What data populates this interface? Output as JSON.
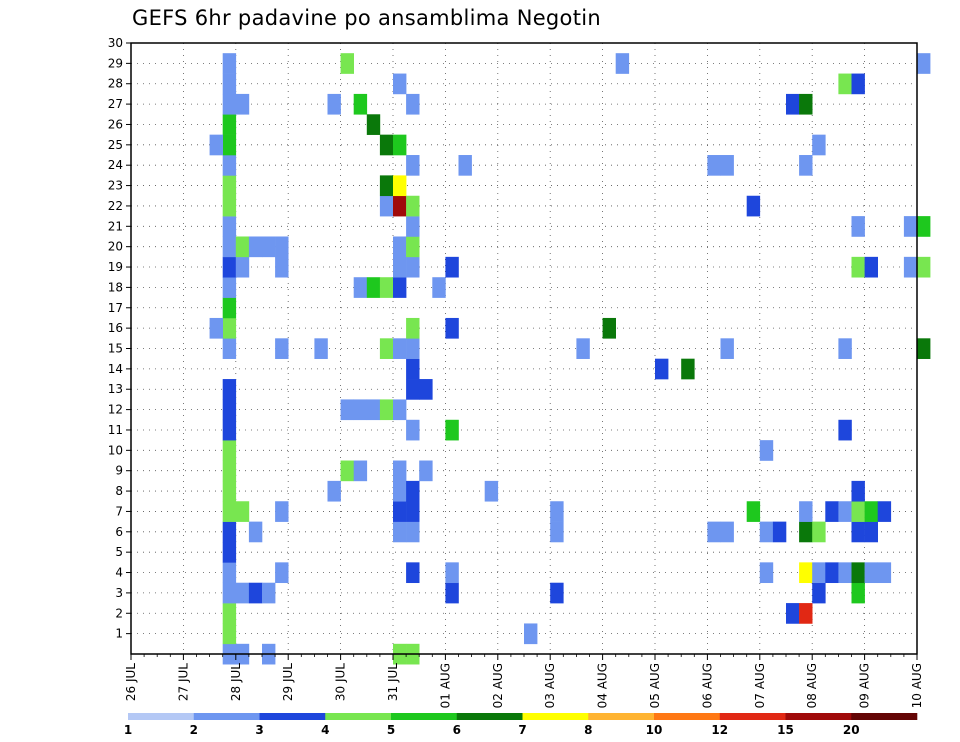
{
  "title": "GEFS 6hr padavine po ansamblima Negotin",
  "chart_data": {
    "type": "heatmap",
    "title": "GEFS 6hr padavine po ansamblima Negotin",
    "xlabel": "",
    "ylabel": "",
    "x_ticks": [
      "26 JUL",
      "27 JUL",
      "28 JUL",
      "29 JUL",
      "30 JUL",
      "31 JUL",
      "01 AUG",
      "02 AUG",
      "03 AUG",
      "04 AUG",
      "05 AUG",
      "06 AUG",
      "07 AUG",
      "08 AUG",
      "09 AUG",
      "10 AUG"
    ],
    "y_ticks": [
      1,
      2,
      3,
      4,
      5,
      6,
      7,
      8,
      9,
      10,
      11,
      12,
      13,
      14,
      15,
      16,
      17,
      18,
      19,
      20,
      21,
      22,
      23,
      24,
      25,
      26,
      27,
      28,
      29,
      30
    ],
    "x_range": [
      0,
      60
    ],
    "y_range": [
      0,
      30
    ],
    "x_step_note": "x index = 6-hour step from 26 JUL 00Z",
    "grid": true,
    "colorbar": {
      "levels": [
        "1",
        "2",
        "3",
        "4",
        "5",
        "6",
        "7",
        "8",
        "10",
        "12",
        "15",
        "20"
      ],
      "colors": [
        "#b4c8f5",
        "#6e96f0",
        "#1e46dc",
        "#78e650",
        "#1ec81e",
        "#0a780a",
        "#ffff00",
        "#ffb432",
        "#ff7814",
        "#e12814",
        "#a00a0a",
        "#640505"
      ]
    },
    "cells": [
      [
        7,
        0,
        1
      ],
      [
        7,
        1,
        3
      ],
      [
        7,
        2,
        3
      ],
      [
        7,
        3,
        1
      ],
      [
        7,
        4,
        1
      ],
      [
        7,
        5,
        2
      ],
      [
        7,
        6,
        2
      ],
      [
        7,
        7,
        3
      ],
      [
        7,
        8,
        3
      ],
      [
        7,
        9,
        3
      ],
      [
        7,
        10,
        3
      ],
      [
        7,
        11,
        2
      ],
      [
        7,
        12,
        2
      ],
      [
        7,
        13,
        2
      ],
      [
        7,
        15,
        1
      ],
      [
        7,
        16,
        3
      ],
      [
        7,
        17,
        4
      ],
      [
        7,
        18,
        1
      ],
      [
        7,
        19,
        2
      ],
      [
        7,
        20,
        1
      ],
      [
        7,
        21,
        1
      ],
      [
        7,
        22,
        3
      ],
      [
        7,
        23,
        3
      ],
      [
        7,
        24,
        1
      ],
      [
        7,
        25,
        4
      ],
      [
        7,
        26,
        4
      ],
      [
        7,
        27,
        1
      ],
      [
        7,
        28,
        1
      ],
      [
        7,
        29,
        1
      ],
      [
        8,
        0,
        1
      ],
      [
        8,
        3,
        1
      ],
      [
        8,
        7,
        3
      ],
      [
        8,
        19,
        1
      ],
      [
        8,
        20,
        3
      ],
      [
        8,
        27,
        1
      ],
      [
        6,
        16,
        1
      ],
      [
        6,
        25,
        1
      ],
      [
        9,
        3,
        2
      ],
      [
        9,
        6,
        1
      ],
      [
        9,
        20,
        1
      ],
      [
        10,
        0,
        1
      ],
      [
        10,
        3,
        1
      ],
      [
        10,
        20,
        1
      ],
      [
        11,
        4,
        1
      ],
      [
        11,
        7,
        1
      ],
      [
        11,
        15,
        1
      ],
      [
        11,
        19,
        1
      ],
      [
        11,
        20,
        1
      ],
      [
        14,
        15,
        1
      ],
      [
        15,
        8,
        1
      ],
      [
        15,
        27,
        1
      ],
      [
        16,
        9,
        3
      ],
      [
        16,
        12,
        1
      ],
      [
        16,
        29,
        3
      ],
      [
        17,
        9,
        1
      ],
      [
        17,
        12,
        1
      ],
      [
        17,
        18,
        1
      ],
      [
        17,
        27,
        4
      ],
      [
        18,
        12,
        1
      ],
      [
        18,
        18,
        4
      ],
      [
        18,
        26,
        5
      ],
      [
        19,
        12,
        3
      ],
      [
        19,
        15,
        3
      ],
      [
        19,
        18,
        3
      ],
      [
        19,
        22,
        1
      ],
      [
        19,
        23,
        5
      ],
      [
        19,
        25,
        5
      ],
      [
        20,
        0,
        3
      ],
      [
        20,
        6,
        1
      ],
      [
        20,
        7,
        2
      ],
      [
        20,
        8,
        1
      ],
      [
        20,
        9,
        1
      ],
      [
        20,
        12,
        1
      ],
      [
        20,
        15,
        1
      ],
      [
        20,
        18,
        2
      ],
      [
        20,
        19,
        1
      ],
      [
        20,
        20,
        1
      ],
      [
        20,
        22,
        10
      ],
      [
        20,
        23,
        6
      ],
      [
        20,
        25,
        4
      ],
      [
        20,
        28,
        1
      ],
      [
        21,
        0,
        3
      ],
      [
        21,
        4,
        2
      ],
      [
        21,
        6,
        1
      ],
      [
        21,
        7,
        2
      ],
      [
        21,
        8,
        2
      ],
      [
        21,
        11,
        1
      ],
      [
        21,
        13,
        2
      ],
      [
        21,
        14,
        2
      ],
      [
        21,
        15,
        1
      ],
      [
        21,
        16,
        3
      ],
      [
        21,
        19,
        1
      ],
      [
        21,
        20,
        3
      ],
      [
        21,
        21,
        1
      ],
      [
        21,
        22,
        3
      ],
      [
        21,
        24,
        1
      ],
      [
        21,
        27,
        1
      ],
      [
        22,
        9,
        1
      ],
      [
        22,
        13,
        2
      ],
      [
        23,
        18,
        1
      ],
      [
        24,
        3,
        2
      ],
      [
        24,
        4,
        1
      ],
      [
        24,
        11,
        4
      ],
      [
        24,
        16,
        2
      ],
      [
        24,
        19,
        2
      ],
      [
        25,
        24,
        1
      ],
      [
        27,
        8,
        1
      ],
      [
        30,
        1,
        1
      ],
      [
        32,
        3,
        2
      ],
      [
        32,
        6,
        1
      ],
      [
        32,
        7,
        1
      ],
      [
        34,
        15,
        1
      ],
      [
        36,
        16,
        5
      ],
      [
        37,
        29,
        1
      ],
      [
        40,
        14,
        2
      ],
      [
        42,
        14,
        5
      ],
      [
        44,
        6,
        1
      ],
      [
        44,
        24,
        1
      ],
      [
        45,
        6,
        1
      ],
      [
        45,
        15,
        1
      ],
      [
        45,
        24,
        1
      ],
      [
        47,
        7,
        4
      ],
      [
        47,
        22,
        2
      ],
      [
        48,
        4,
        1
      ],
      [
        48,
        6,
        1
      ],
      [
        48,
        10,
        1
      ],
      [
        49,
        6,
        2
      ],
      [
        50,
        2,
        2
      ],
      [
        50,
        27,
        2
      ],
      [
        51,
        2,
        9
      ],
      [
        51,
        4,
        6
      ],
      [
        51,
        6,
        5
      ],
      [
        51,
        7,
        1
      ],
      [
        51,
        24,
        1
      ],
      [
        51,
        27,
        5
      ],
      [
        52,
        3,
        2
      ],
      [
        52,
        4,
        1
      ],
      [
        52,
        6,
        3
      ],
      [
        52,
        25,
        1
      ],
      [
        53,
        4,
        2
      ],
      [
        53,
        7,
        2
      ],
      [
        54,
        4,
        1
      ],
      [
        54,
        7,
        1
      ],
      [
        54,
        11,
        2
      ],
      [
        54,
        15,
        1
      ],
      [
        54,
        28,
        3
      ],
      [
        55,
        3,
        4
      ],
      [
        55,
        4,
        5
      ],
      [
        55,
        6,
        2
      ],
      [
        55,
        7,
        3
      ],
      [
        55,
        8,
        2
      ],
      [
        55,
        19,
        3
      ],
      [
        55,
        21,
        1
      ],
      [
        55,
        28,
        2
      ],
      [
        56,
        4,
        1
      ],
      [
        56,
        6,
        2
      ],
      [
        56,
        7,
        4
      ],
      [
        56,
        19,
        2
      ],
      [
        57,
        4,
        1
      ],
      [
        57,
        7,
        2
      ],
      [
        59,
        19,
        1
      ],
      [
        59,
        21,
        1
      ],
      [
        60,
        15,
        5
      ],
      [
        60,
        19,
        3
      ],
      [
        60,
        21,
        4
      ],
      [
        60,
        29,
        1
      ]
    ]
  }
}
